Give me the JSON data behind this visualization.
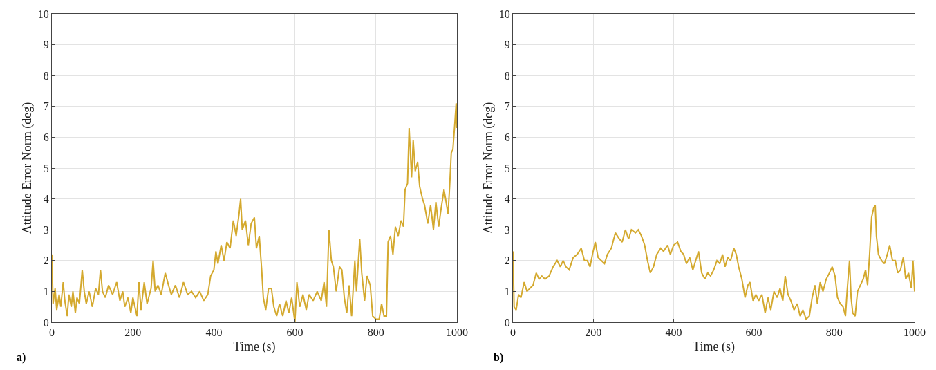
{
  "chart_data": [
    {
      "type": "line",
      "xlabel": "Time (s)",
      "ylabel": "Attitude Error Norm (deg)",
      "annotations": [
        "a)"
      ],
      "xlim": [
        0,
        1000
      ],
      "ylim": [
        0,
        10
      ],
      "xticks": [
        0,
        200,
        400,
        600,
        800,
        1000
      ],
      "yticks": [
        0,
        1,
        2,
        3,
        4,
        5,
        6,
        7,
        8,
        9,
        10
      ],
      "grid": true,
      "x": [
        0,
        3,
        8,
        12,
        18,
        22,
        28,
        32,
        38,
        42,
        48,
        52,
        58,
        62,
        68,
        75,
        80,
        85,
        92,
        100,
        108,
        115,
        120,
        125,
        132,
        140,
        150,
        160,
        168,
        175,
        180,
        188,
        195,
        200,
        205,
        210,
        215,
        220,
        228,
        235,
        245,
        250,
        255,
        262,
        270,
        280,
        288,
        295,
        305,
        315,
        325,
        335,
        345,
        355,
        365,
        375,
        385,
        392,
        400,
        405,
        410,
        418,
        425,
        432,
        440,
        448,
        455,
        462,
        466,
        470,
        478,
        485,
        492,
        500,
        505,
        512,
        518,
        522,
        528,
        535,
        542,
        548,
        555,
        562,
        570,
        578,
        585,
        592,
        600,
        605,
        612,
        620,
        628,
        635,
        645,
        655,
        665,
        672,
        678,
        684,
        690,
        695,
        702,
        710,
        716,
        722,
        728,
        734,
        740,
        748,
        752,
        760,
        765,
        772,
        778,
        786,
        792,
        800,
        808,
        814,
        820,
        826,
        830,
        836,
        842,
        848,
        855,
        862,
        868,
        872,
        878,
        882,
        888,
        892,
        897,
        903,
        908,
        915,
        920,
        928,
        935,
        942,
        948,
        955,
        960,
        968,
        972,
        978,
        982,
        986,
        990,
        995,
        998,
        1000
      ],
      "series": [
        {
          "color": "#d4a92e",
          "values": [
            2.2,
            0.6,
            1.1,
            0.4,
            0.9,
            0.5,
            1.3,
            0.7,
            0.2,
            0.9,
            0.5,
            1.0,
            0.3,
            0.8,
            0.6,
            1.7,
            1.0,
            0.6,
            1.0,
            0.5,
            1.1,
            0.9,
            1.7,
            1.0,
            0.8,
            1.2,
            0.9,
            1.3,
            0.7,
            1.0,
            0.5,
            0.8,
            0.3,
            0.8,
            0.5,
            0.2,
            1.3,
            0.4,
            1.3,
            0.6,
            1.1,
            2.0,
            1.0,
            1.2,
            0.9,
            1.6,
            1.2,
            0.9,
            1.2,
            0.8,
            1.3,
            0.9,
            1.0,
            0.8,
            1.0,
            0.7,
            0.9,
            1.5,
            1.7,
            2.3,
            1.9,
            2.5,
            2.0,
            2.6,
            2.4,
            3.3,
            2.8,
            3.5,
            4.0,
            3.0,
            3.3,
            2.5,
            3.2,
            3.4,
            2.4,
            2.8,
            1.7,
            0.8,
            0.4,
            1.1,
            1.1,
            0.5,
            0.2,
            0.6,
            0.2,
            0.7,
            0.3,
            0.8,
            0.0,
            1.3,
            0.5,
            0.9,
            0.4,
            0.9,
            0.7,
            1.0,
            0.7,
            1.3,
            0.5,
            3.0,
            2.0,
            1.8,
            1.0,
            1.8,
            1.7,
            0.8,
            0.3,
            1.2,
            0.2,
            2.0,
            1.0,
            2.7,
            1.6,
            0.7,
            1.5,
            1.2,
            0.2,
            0.1,
            0.1,
            0.6,
            0.2,
            0.2,
            2.6,
            2.8,
            2.2,
            3.1,
            2.8,
            3.3,
            3.1,
            4.3,
            4.5,
            6.3,
            4.7,
            5.9,
            4.9,
            5.2,
            4.4,
            4.0,
            3.8,
            3.2,
            3.8,
            3.0,
            3.9,
            3.1,
            3.6,
            4.3,
            4.0,
            3.5,
            4.4,
            5.5,
            5.6,
            6.5,
            7.1,
            6.3
          ]
        }
      ]
    },
    {
      "type": "line",
      "xlabel": "Time (s)",
      "ylabel": "Attitude Error Norm (deg)",
      "annotations": [
        "b)"
      ],
      "xlim": [
        0,
        1000
      ],
      "ylim": [
        0,
        10
      ],
      "xticks": [
        0,
        200,
        400,
        600,
        800,
        1000
      ],
      "yticks": [
        0,
        1,
        2,
        3,
        4,
        5,
        6,
        7,
        8,
        9,
        10
      ],
      "grid": true,
      "x": [
        0,
        3,
        8,
        14,
        20,
        28,
        35,
        42,
        50,
        58,
        65,
        72,
        80,
        90,
        100,
        110,
        118,
        125,
        132,
        140,
        150,
        160,
        170,
        178,
        185,
        192,
        198,
        205,
        212,
        220,
        228,
        235,
        245,
        255,
        265,
        272,
        280,
        288,
        295,
        305,
        312,
        320,
        328,
        335,
        342,
        350,
        358,
        368,
        375,
        385,
        392,
        400,
        410,
        418,
        425,
        432,
        440,
        448,
        455,
        462,
        470,
        478,
        485,
        492,
        500,
        508,
        515,
        522,
        528,
        535,
        542,
        550,
        556,
        562,
        570,
        578,
        585,
        590,
        598,
        605,
        612,
        620,
        628,
        635,
        642,
        650,
        658,
        665,
        672,
        678,
        685,
        692,
        700,
        708,
        715,
        722,
        730,
        738,
        745,
        752,
        758,
        765,
        772,
        780,
        788,
        795,
        802,
        808,
        815,
        822,
        828,
        832,
        838,
        842,
        846,
        852,
        858,
        865,
        872,
        878,
        883,
        888,
        893,
        898,
        902,
        905,
        910,
        918,
        925,
        932,
        938,
        945,
        952,
        958,
        965,
        972,
        978,
        985,
        992,
        996,
        1000
      ],
      "series": [
        {
          "color": "#d4a92e",
          "values": [
            2.3,
            0.5,
            0.4,
            0.9,
            0.8,
            1.3,
            1.0,
            1.1,
            1.2,
            1.6,
            1.4,
            1.5,
            1.4,
            1.5,
            1.8,
            2.0,
            1.8,
            2.0,
            1.8,
            1.7,
            2.1,
            2.2,
            2.4,
            2.0,
            2.0,
            1.8,
            2.2,
            2.6,
            2.1,
            2.0,
            1.9,
            2.2,
            2.4,
            2.9,
            2.7,
            2.6,
            3.0,
            2.7,
            3.0,
            2.9,
            3.0,
            2.8,
            2.5,
            2.0,
            1.6,
            1.8,
            2.2,
            2.4,
            2.3,
            2.5,
            2.2,
            2.5,
            2.6,
            2.3,
            2.2,
            1.9,
            2.1,
            1.7,
            2.0,
            2.3,
            1.6,
            1.4,
            1.6,
            1.5,
            1.7,
            2.0,
            1.9,
            2.2,
            1.8,
            2.1,
            2.0,
            2.4,
            2.2,
            1.8,
            1.4,
            0.8,
            1.2,
            1.3,
            0.7,
            0.9,
            0.7,
            0.9,
            0.3,
            0.8,
            0.4,
            1.0,
            0.8,
            1.1,
            0.7,
            1.5,
            0.9,
            0.7,
            0.4,
            0.6,
            0.2,
            0.4,
            0.1,
            0.2,
            0.8,
            1.2,
            0.6,
            1.3,
            1.0,
            1.4,
            1.6,
            1.8,
            1.5,
            0.8,
            0.6,
            0.5,
            0.2,
            1.0,
            2.0,
            0.8,
            0.3,
            0.2,
            1.0,
            1.2,
            1.4,
            1.7,
            1.2,
            2.2,
            3.4,
            3.7,
            3.8,
            2.8,
            2.2,
            2.0,
            1.9,
            2.2,
            2.5,
            2.0,
            2.0,
            1.6,
            1.7,
            2.1,
            1.4,
            1.6,
            1.1,
            2.0,
            1.0
          ]
        }
      ]
    }
  ]
}
